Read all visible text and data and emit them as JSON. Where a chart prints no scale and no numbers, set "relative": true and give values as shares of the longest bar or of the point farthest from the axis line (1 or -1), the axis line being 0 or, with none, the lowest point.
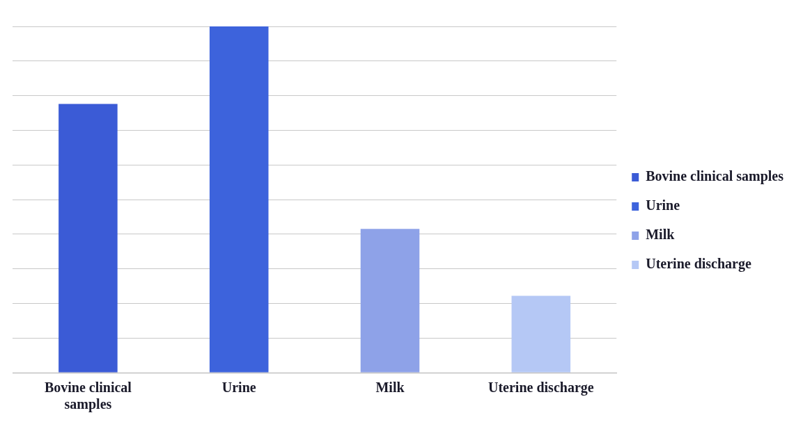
{
  "chart_data": {
    "type": "bar",
    "relative": true,
    "categories": [
      "Bovine clinical samples",
      "Urine",
      "Milk",
      "Uterine discharge"
    ],
    "series": [
      {
        "name": "Bovine clinical samples",
        "color": "#3b5bd6",
        "values": [
          0.776,
          null,
          null,
          null
        ]
      },
      {
        "name": "Urine",
        "color": "#3d63dc",
        "values": [
          null,
          1,
          null,
          null
        ]
      },
      {
        "name": "Milk",
        "color": "#8ea2e8",
        "values": [
          null,
          null,
          0.415,
          null
        ]
      },
      {
        "name": "Uterine discharge",
        "color": "#b5c8f5",
        "values": [
          null,
          null,
          null,
          0.222
        ]
      }
    ],
    "grid": "y",
    "legend": "right"
  }
}
